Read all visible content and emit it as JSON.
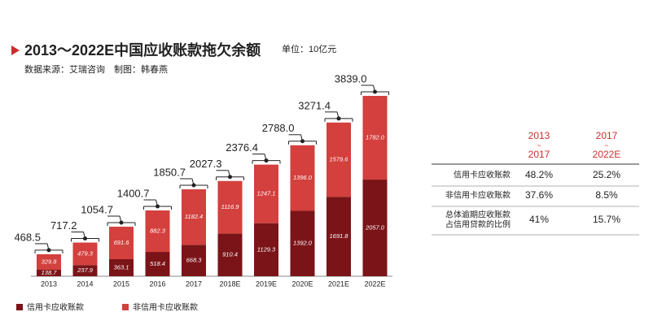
{
  "chart_data": {
    "type": "bar",
    "stacked": true,
    "title": "2013～2022E中国应收账款拖欠余额",
    "unit": "单位：10亿元",
    "source": "数据来源：艾瑞咨询　制图：韩春燕",
    "categories": [
      "2013",
      "2014",
      "2015",
      "2016",
      "2017",
      "2018E",
      "2019E",
      "2020E",
      "2021E",
      "2022E"
    ],
    "series": [
      {
        "name": "信用卡应收账款",
        "color": "#7b1418",
        "values": [
          138.7,
          237.9,
          363.1,
          518.4,
          668.3,
          910.4,
          1129.3,
          1392.0,
          1691.8,
          2057.0
        ],
        "value_labels": [
          "138.7",
          "237.9",
          "363.1",
          "518.4",
          "668.3",
          "910.4",
          "1129.3",
          "1392.0",
          "1691.8",
          "2057.0"
        ]
      },
      {
        "name": "非信用卡应收账款",
        "color": "#d3403d",
        "values": [
          329.8,
          479.3,
          691.6,
          882.3,
          1182.4,
          1116.9,
          1247.1,
          1396.0,
          1579.6,
          1782.0
        ],
        "value_labels": [
          "329.8",
          "479.3",
          "691.6",
          "882.3",
          "1182.4",
          "1116.9",
          "1247.1",
          "1396.0",
          "1579.6",
          "1782.0"
        ]
      }
    ],
    "totals": {
      "values": [
        468.5,
        717.2,
        1054.7,
        1400.7,
        1850.7,
        2027.3,
        2376.4,
        2788.0,
        3271.4,
        3839.0
      ],
      "value_labels": [
        "468.5",
        "717.2",
        "1054.7",
        "1400.7",
        "1850.7",
        "2027.3",
        "2376.4",
        "2788.0",
        "3271.4",
        "3839.0"
      ]
    }
  },
  "table": {
    "columns": [
      [
        "2013",
        "~",
        "2017"
      ],
      [
        "2017",
        "~",
        "2022E"
      ]
    ],
    "rows": [
      {
        "label": [
          "信用卡应收账款"
        ],
        "values": [
          "48.2%",
          "25.2%"
        ]
      },
      {
        "label": [
          "非信用卡应收账款"
        ],
        "values": [
          "37.6%",
          "8.5%"
        ]
      },
      {
        "label": [
          "总体逾期应收账款",
          "占信用贷款的比例"
        ],
        "values": [
          "41%",
          "15.7%"
        ]
      }
    ]
  }
}
